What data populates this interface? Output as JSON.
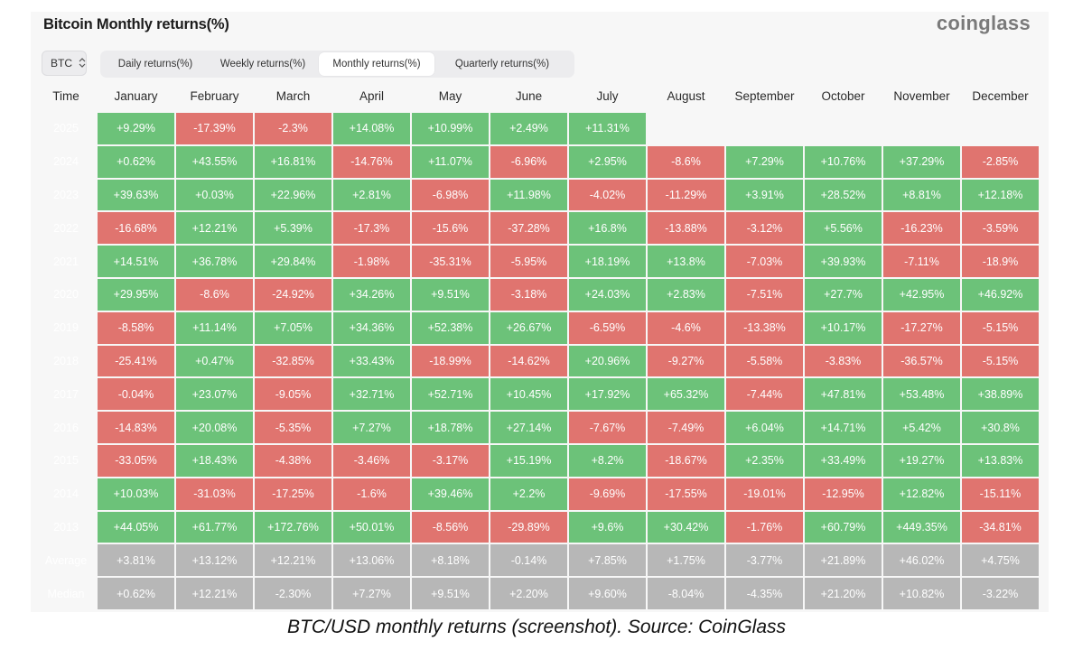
{
  "header": {
    "title": "Bitcoin Monthly returns(%)",
    "brand": "coinglass"
  },
  "symbol_select": {
    "value": "BTC"
  },
  "tabs": [
    {
      "label": "Daily returns(%)",
      "active": false
    },
    {
      "label": "Weekly returns(%)",
      "active": false
    },
    {
      "label": "Monthly returns(%)",
      "active": true
    },
    {
      "label": "Quarterly returns(%)",
      "active": false
    }
  ],
  "table": {
    "columns": [
      "Time",
      "January",
      "February",
      "March",
      "April",
      "May",
      "June",
      "July",
      "August",
      "September",
      "October",
      "November",
      "December"
    ],
    "rows": [
      {
        "label": "2025",
        "values": [
          "+9.29%",
          "-17.39%",
          "-2.3%",
          "+14.08%",
          "+10.99%",
          "+2.49%",
          "+11.31%",
          "",
          "",
          "",
          "",
          ""
        ]
      },
      {
        "label": "2024",
        "values": [
          "+0.62%",
          "+43.55%",
          "+16.81%",
          "-14.76%",
          "+11.07%",
          "-6.96%",
          "+2.95%",
          "-8.6%",
          "+7.29%",
          "+10.76%",
          "+37.29%",
          "-2.85%"
        ]
      },
      {
        "label": "2023",
        "values": [
          "+39.63%",
          "+0.03%",
          "+22.96%",
          "+2.81%",
          "-6.98%",
          "+11.98%",
          "-4.02%",
          "-11.29%",
          "+3.91%",
          "+28.52%",
          "+8.81%",
          "+12.18%"
        ]
      },
      {
        "label": "2022",
        "values": [
          "-16.68%",
          "+12.21%",
          "+5.39%",
          "-17.3%",
          "-15.6%",
          "-37.28%",
          "+16.8%",
          "-13.88%",
          "-3.12%",
          "+5.56%",
          "-16.23%",
          "-3.59%"
        ]
      },
      {
        "label": "2021",
        "values": [
          "+14.51%",
          "+36.78%",
          "+29.84%",
          "-1.98%",
          "-35.31%",
          "-5.95%",
          "+18.19%",
          "+13.8%",
          "-7.03%",
          "+39.93%",
          "-7.11%",
          "-18.9%"
        ]
      },
      {
        "label": "2020",
        "values": [
          "+29.95%",
          "-8.6%",
          "-24.92%",
          "+34.26%",
          "+9.51%",
          "-3.18%",
          "+24.03%",
          "+2.83%",
          "-7.51%",
          "+27.7%",
          "+42.95%",
          "+46.92%"
        ]
      },
      {
        "label": "2019",
        "values": [
          "-8.58%",
          "+11.14%",
          "+7.05%",
          "+34.36%",
          "+52.38%",
          "+26.67%",
          "-6.59%",
          "-4.6%",
          "-13.38%",
          "+10.17%",
          "-17.27%",
          "-5.15%"
        ]
      },
      {
        "label": "2018",
        "values": [
          "-25.41%",
          "+0.47%",
          "-32.85%",
          "+33.43%",
          "-18.99%",
          "-14.62%",
          "+20.96%",
          "-9.27%",
          "-5.58%",
          "-3.83%",
          "-36.57%",
          "-5.15%"
        ]
      },
      {
        "label": "2017",
        "values": [
          "-0.04%",
          "+23.07%",
          "-9.05%",
          "+32.71%",
          "+52.71%",
          "+10.45%",
          "+17.92%",
          "+65.32%",
          "-7.44%",
          "+47.81%",
          "+53.48%",
          "+38.89%"
        ]
      },
      {
        "label": "2016",
        "values": [
          "-14.83%",
          "+20.08%",
          "-5.35%",
          "+7.27%",
          "+18.78%",
          "+27.14%",
          "-7.67%",
          "-7.49%",
          "+6.04%",
          "+14.71%",
          "+5.42%",
          "+30.8%"
        ]
      },
      {
        "label": "2015",
        "values": [
          "-33.05%",
          "+18.43%",
          "-4.38%",
          "-3.46%",
          "-3.17%",
          "+15.19%",
          "+8.2%",
          "-18.67%",
          "+2.35%",
          "+33.49%",
          "+19.27%",
          "+13.83%"
        ]
      },
      {
        "label": "2014",
        "values": [
          "+10.03%",
          "-31.03%",
          "-17.25%",
          "-1.6%",
          "+39.46%",
          "+2.2%",
          "-9.69%",
          "-17.55%",
          "-19.01%",
          "-12.95%",
          "+12.82%",
          "-15.11%"
        ]
      },
      {
        "label": "2013",
        "values": [
          "+44.05%",
          "+61.77%",
          "+172.76%",
          "+50.01%",
          "-8.56%",
          "-29.89%",
          "+9.6%",
          "+30.42%",
          "-1.76%",
          "+60.79%",
          "+449.35%",
          "-34.81%"
        ]
      }
    ],
    "stats": [
      {
        "label": "Average",
        "values": [
          "+3.81%",
          "+13.12%",
          "+12.21%",
          "+13.06%",
          "+8.18%",
          "-0.14%",
          "+7.85%",
          "+1.75%",
          "-3.77%",
          "+21.89%",
          "+46.02%",
          "+4.75%"
        ]
      },
      {
        "label": "Median",
        "values": [
          "+0.62%",
          "+12.21%",
          "-2.30%",
          "+7.27%",
          "+9.51%",
          "+2.20%",
          "+9.60%",
          "-8.04%",
          "-4.35%",
          "+21.20%",
          "+10.82%",
          "-3.22%"
        ]
      }
    ]
  },
  "colors": {
    "positive": "#6cc279",
    "negative": "#e0746f",
    "stat": "#b7b7b7"
  },
  "caption": "BTC/USD monthly returns (screenshot). Source: CoinGlass"
}
